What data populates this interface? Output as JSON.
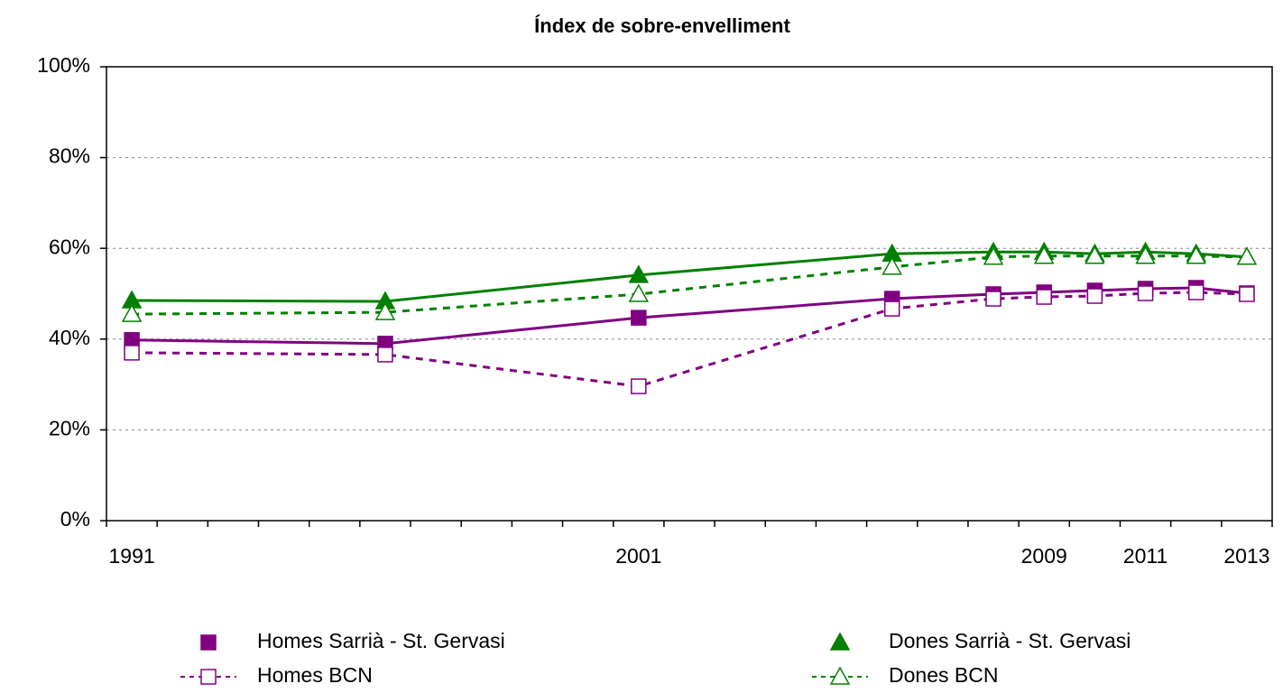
{
  "chart_data": {
    "type": "line",
    "title": "Índex de sobre-envelliment",
    "x": [
      1991,
      1996,
      2001,
      2006,
      2008,
      2009,
      2010,
      2011,
      2012,
      2013
    ],
    "xlim": [
      1990.5,
      2013.5
    ],
    "xticks": [
      1991,
      2001,
      2009,
      2011,
      2013
    ],
    "ylim": [
      0,
      100
    ],
    "yticks": [
      {
        "value": 0,
        "label": "0%"
      },
      {
        "value": 20,
        "label": "20%"
      },
      {
        "value": 40,
        "label": "40%"
      },
      {
        "value": 60,
        "label": "60%"
      },
      {
        "value": 80,
        "label": "80%"
      },
      {
        "value": 100,
        "label": "100%"
      }
    ],
    "grid": true,
    "legend": "bottom",
    "series": [
      {
        "name": "Homes Sarrià - St. Gervasi",
        "color": "#800080",
        "marker": "square",
        "filled": true,
        "dash": false,
        "values": [
          39.8,
          39.0,
          44.7,
          48.9,
          49.9,
          50.3,
          50.7,
          51.1,
          51.3,
          50.1
        ]
      },
      {
        "name": "Dones Sarrià - St. Gervasi",
        "color": "#008000",
        "marker": "triangle",
        "filled": true,
        "dash": false,
        "values": [
          48.5,
          48.3,
          54.1,
          58.8,
          59.2,
          59.2,
          58.8,
          59.2,
          58.8,
          58.1
        ]
      },
      {
        "name": "Homes BCN",
        "color": "#800080",
        "marker": "square",
        "filled": false,
        "dash": true,
        "values": [
          37.0,
          36.6,
          29.6,
          46.7,
          48.9,
          49.3,
          49.5,
          50.1,
          50.3,
          49.9
        ]
      },
      {
        "name": "Dones BCN",
        "color": "#008000",
        "marker": "triangle",
        "filled": false,
        "dash": true,
        "values": [
          45.5,
          45.9,
          49.9,
          55.9,
          58.1,
          58.3,
          58.3,
          58.3,
          58.3,
          58.1
        ]
      }
    ]
  }
}
